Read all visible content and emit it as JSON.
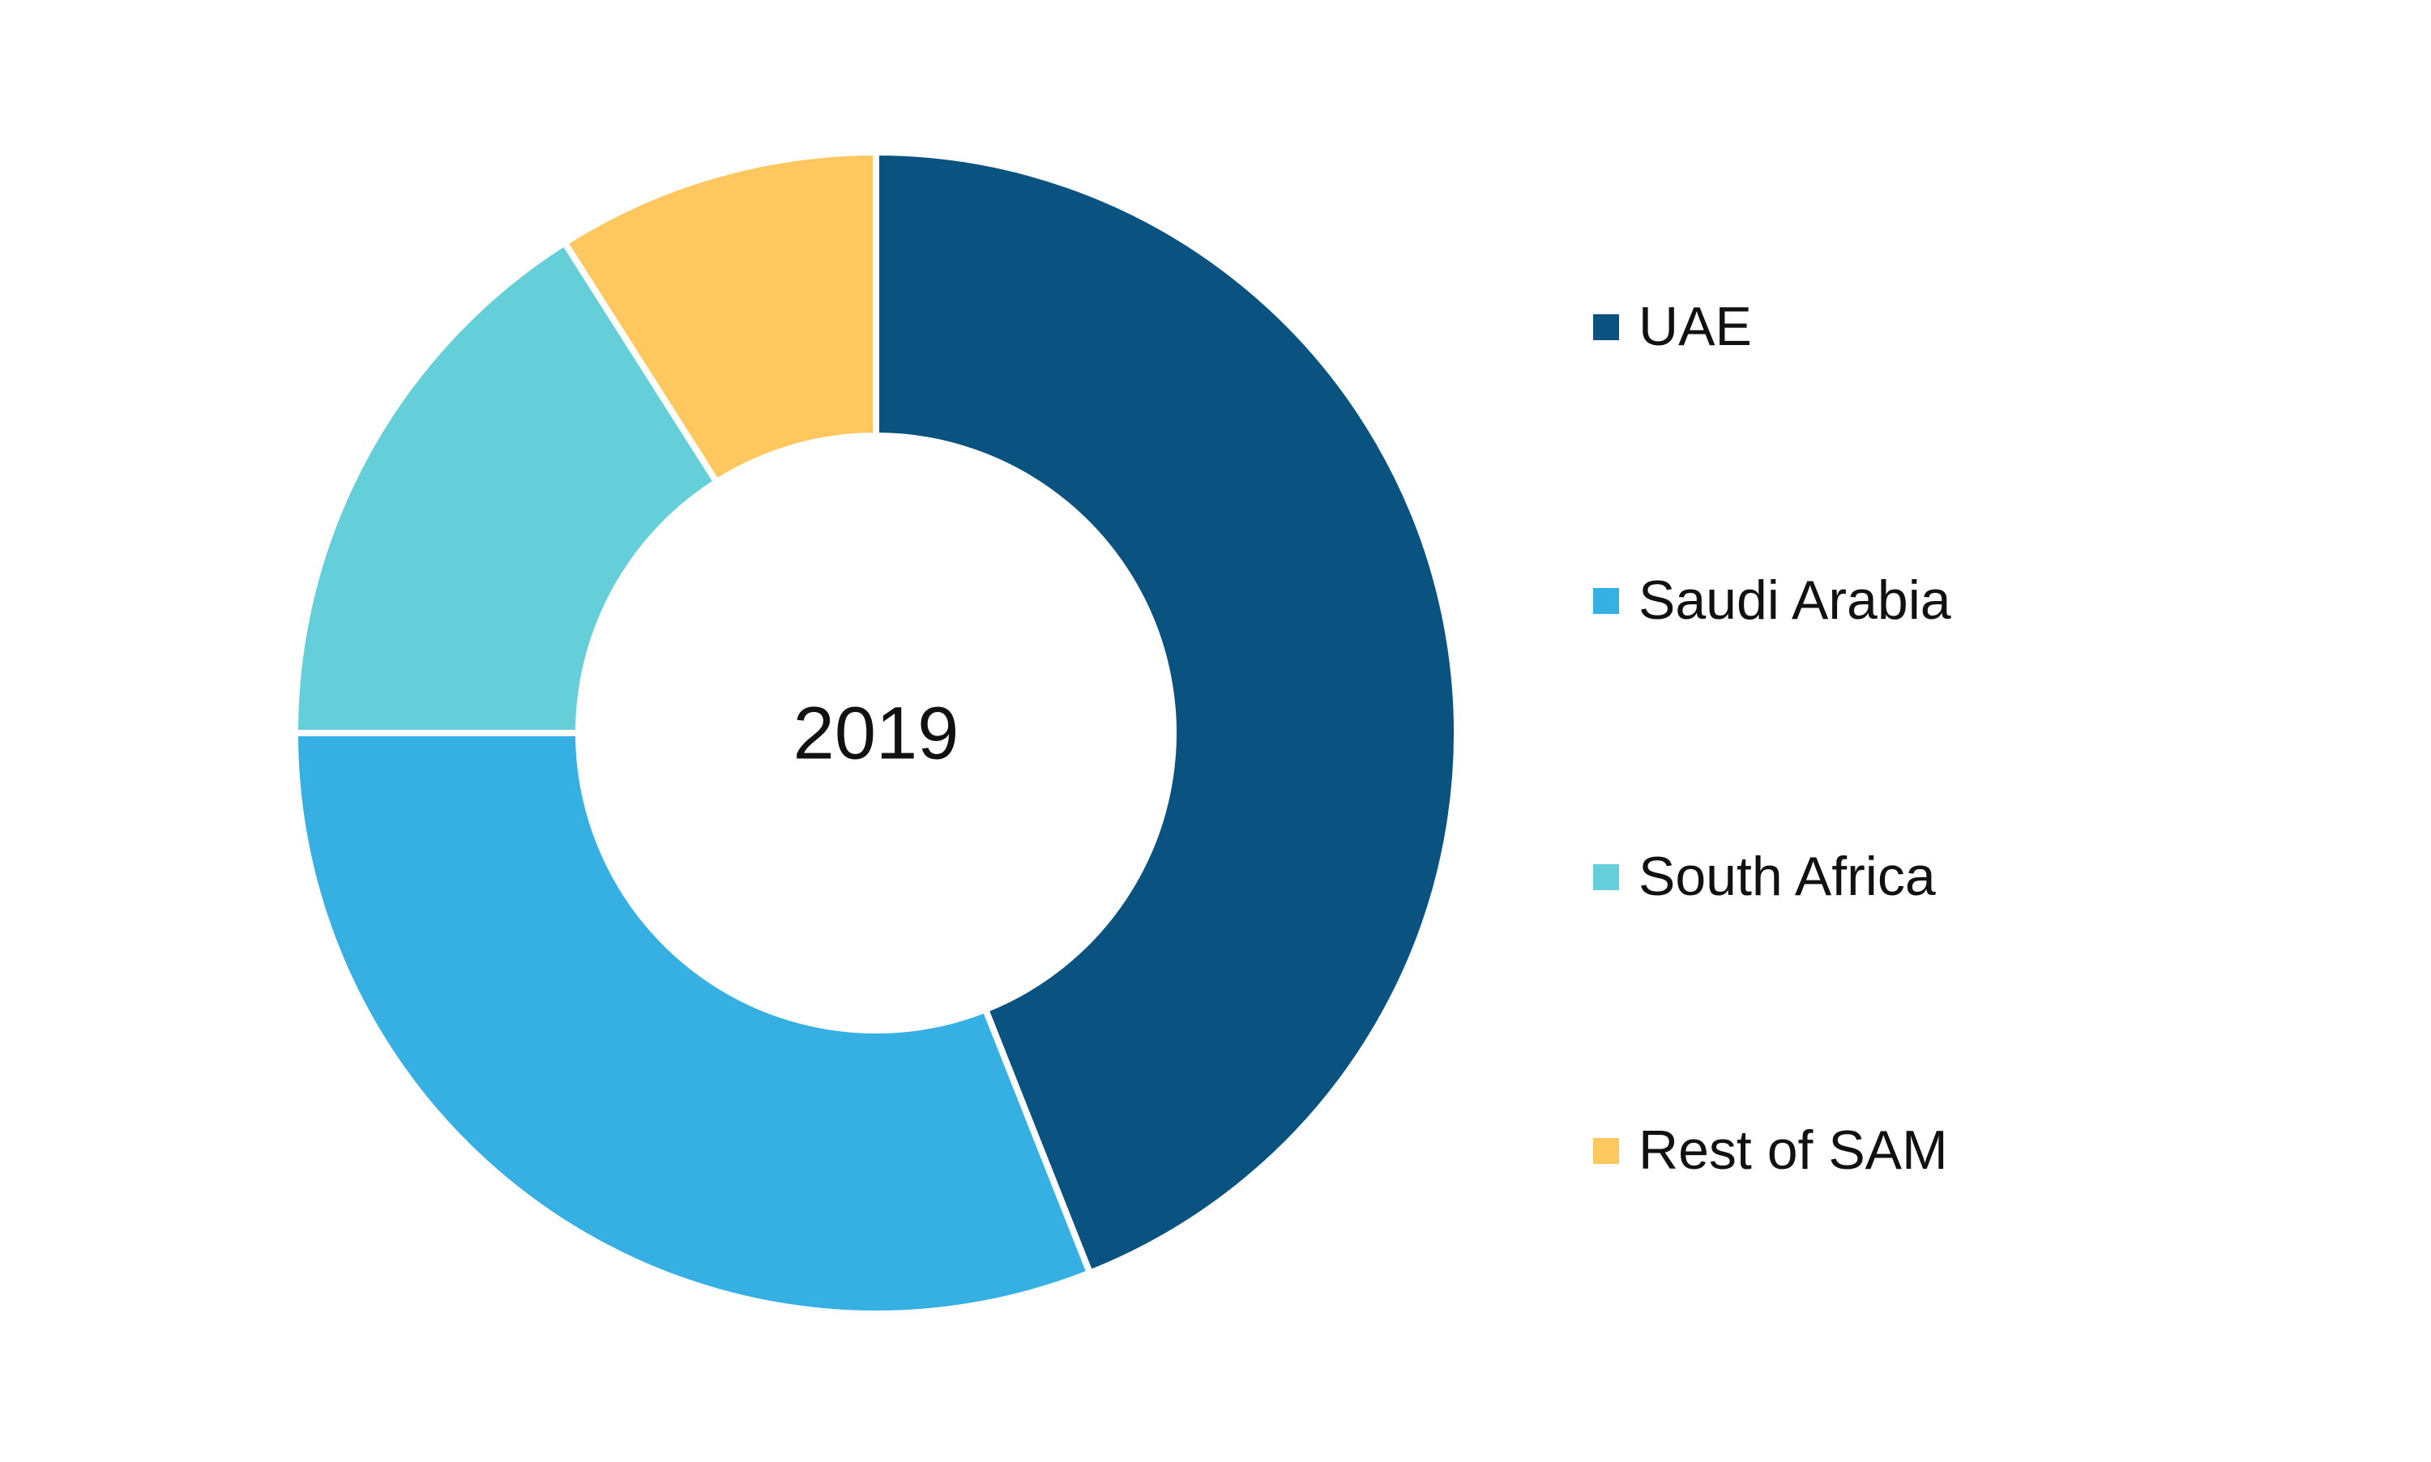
{
  "chart_data": {
    "type": "pie",
    "title": "2019",
    "categories": [
      "UAE",
      "Saudi Arabia",
      "South Africa",
      "Rest of SAM"
    ],
    "values": [
      44,
      31,
      16,
      9
    ],
    "colors": [
      "#0a5380",
      "#36b0e2",
      "#64cfd8",
      "#fec85e"
    ]
  }
}
